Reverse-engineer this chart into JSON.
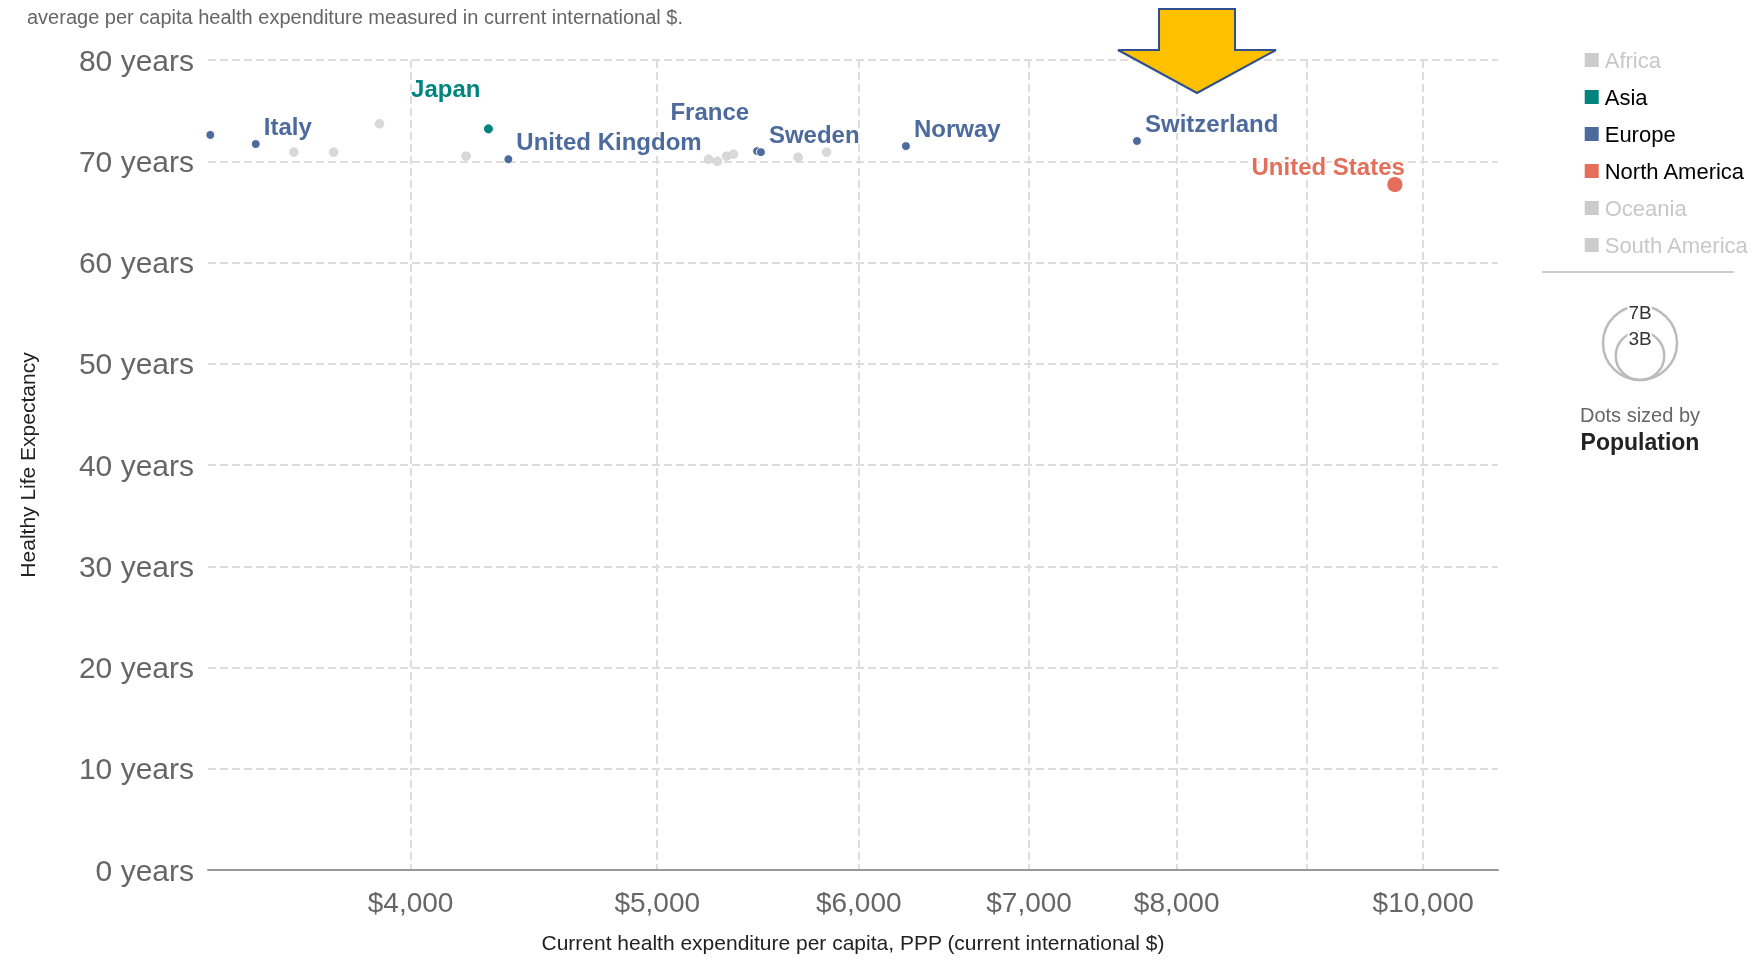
{
  "chart_data": {
    "type": "bubble",
    "subtitle": "average per capita health expenditure measured in current international $.",
    "xlabel": "Current health expenditure per capita, PPP (current international $)",
    "ylabel": "Healthy Life Expectancy",
    "log": "x",
    "xlim": [
      3330,
      10700
    ],
    "xticks": [
      {
        "value": 4000,
        "label": "$4,000"
      },
      {
        "value": 5000,
        "label": "$5,000"
      },
      {
        "value": 6000,
        "label": "$6,000"
      },
      {
        "value": 7000,
        "label": "$7,000"
      },
      {
        "value": 8000,
        "label": "$8,000"
      },
      {
        "value": 9000,
        "label": null
      },
      {
        "value": 10000,
        "label": "$10,000"
      }
    ],
    "ylim": [
      0,
      80
    ],
    "yticks": [
      {
        "value": 0,
        "label": "0 years"
      },
      {
        "value": 10,
        "label": "10 years"
      },
      {
        "value": 20,
        "label": "20 years"
      },
      {
        "value": 30,
        "label": "30 years"
      },
      {
        "value": 40,
        "label": "40 years"
      },
      {
        "value": 50,
        "label": "50 years"
      },
      {
        "value": 60,
        "label": "60 years"
      },
      {
        "value": 70,
        "label": "70 years"
      },
      {
        "value": 80,
        "label": "80 years"
      }
    ],
    "grid": true,
    "legend": "top right",
    "size_legend": [
      {
        "value": 7,
        "label": "7B"
      },
      {
        "value": 3,
        "label": "3B"
      }
    ],
    "series": [
      {
        "name": "Africa",
        "color": "#cccccc"
      },
      {
        "name": "Asia",
        "color": "#00847e",
        "x": [
          4292
        ],
        "values": [
          73.2
        ],
        "sizes": [
          0.13
        ]
      },
      {
        "name": "Europe",
        "color": "#4c6a9c",
        "x": [
          3337,
          3477,
          4370,
          5473,
          5492,
          6262,
          7718
        ],
        "values": [
          72.6,
          71.7,
          70.2,
          71.0,
          70.9,
          71.5,
          72.0
        ],
        "sizes": [
          0.1,
          0.1,
          0.1,
          0.1,
          0.1,
          0.1,
          0.1
        ]
      },
      {
        "name": "North America",
        "color": "#e56e5a",
        "x": [
          9747
        ],
        "values": [
          67.7
        ],
        "sizes": [
          0.33
        ]
      },
      {
        "name": "Oceania",
        "color": "#cccccc"
      },
      {
        "name": "South America",
        "color": "#cccccc"
      },
      {
        "color": "#d9d9d9",
        "x": [
          3599,
          3731,
          3889,
          4206,
          5238,
          5280,
          5324,
          5357,
          5680,
          5828
        ],
        "values": [
          70.9,
          70.9,
          73.7,
          70.5,
          70.2,
          70.0,
          70.5,
          70.7,
          70.4,
          70.9
        ],
        "sizes": [
          0.1,
          0.1,
          0.1,
          0.1,
          0.1,
          0.1,
          0.1,
          0.1,
          0.1,
          0.1
        ]
      }
    ],
    "annotations": [
      "Dots sized by",
      "Population",
      {
        "text": "Italy",
        "x": 3477,
        "y": 71.7
      },
      {
        "text": "Japan",
        "x": 4292,
        "y": 73.2
      },
      {
        "text": "United Kingdom",
        "x": 4370,
        "y": 70.2
      },
      {
        "text": "France",
        "x": 5473,
        "y": 71.0
      },
      {
        "text": "Sweden",
        "x": 5492,
        "y": 70.9
      },
      {
        "text": "Norway",
        "x": 6262,
        "y": 71.5
      },
      {
        "text": "Switzerland",
        "x": 7718,
        "y": 72.0
      },
      {
        "text": "United States",
        "x": 9747,
        "y": 67.7
      }
    ]
  }
}
